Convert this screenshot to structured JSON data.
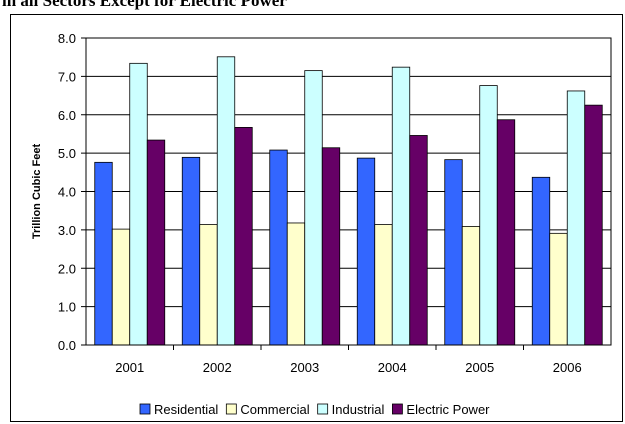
{
  "header": {
    "title": "in all Sectors Except for Electric Power"
  },
  "chart_data": {
    "type": "bar",
    "title": "",
    "xlabel": "",
    "ylabel": "Trillion Cubic Feet",
    "ylim": [
      0,
      8
    ],
    "yticks": [
      "0.0",
      "1.0",
      "2.0",
      "3.0",
      "4.0",
      "5.0",
      "6.0",
      "7.0",
      "8.0"
    ],
    "grid": true,
    "legend_position": "bottom",
    "categories": [
      "2001",
      "2002",
      "2003",
      "2004",
      "2005",
      "2006"
    ],
    "series": [
      {
        "name": "Residential",
        "color": "#3366ff",
        "values": [
          4.76,
          4.89,
          5.08,
          4.87,
          4.83,
          4.37
        ]
      },
      {
        "name": "Commercial",
        "color": "#ffffcc",
        "values": [
          3.02,
          3.14,
          3.18,
          3.14,
          3.09,
          2.91
        ]
      },
      {
        "name": "Industrial",
        "color": "#ccffff",
        "values": [
          7.34,
          7.51,
          7.15,
          7.24,
          6.76,
          6.62
        ]
      },
      {
        "name": "Electric Power",
        "color": "#660066",
        "values": [
          5.34,
          5.67,
          5.14,
          5.46,
          5.87,
          6.25
        ]
      }
    ]
  }
}
